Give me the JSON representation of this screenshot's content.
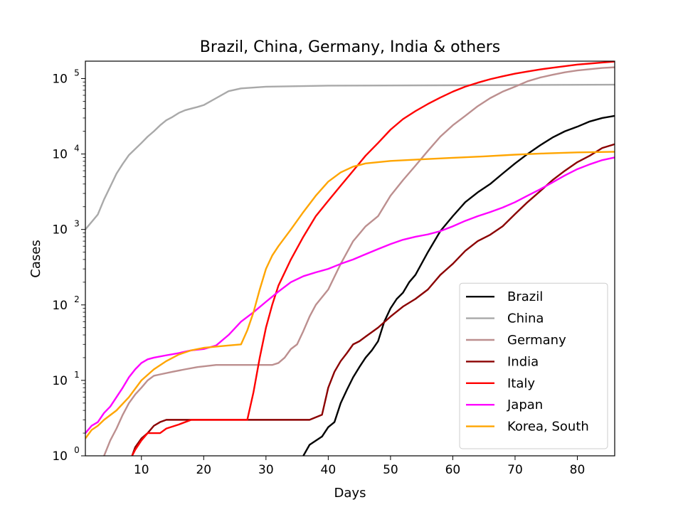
{
  "chart_data": {
    "type": "line",
    "title": "Brazil, China, Germany, India & others",
    "xlabel": "Days",
    "ylabel": "Cases",
    "xlim": [
      1,
      86
    ],
    "ylim": [
      1,
      170000
    ],
    "yscale": "log",
    "x_ticks": [
      10,
      20,
      30,
      40,
      50,
      60,
      70,
      80
    ],
    "y_ticks": [
      {
        "value": 1,
        "base": "10",
        "exp": "0"
      },
      {
        "value": 10,
        "base": "10",
        "exp": "1"
      },
      {
        "value": 100,
        "base": "10",
        "exp": "2"
      },
      {
        "value": 1000,
        "base": "10",
        "exp": "3"
      },
      {
        "value": 10000,
        "base": "10",
        "exp": "4"
      },
      {
        "value": 100000,
        "base": "10",
        "exp": "5"
      }
    ],
    "grid": false,
    "legend_position": "lower-right",
    "series": [
      {
        "name": "Brazil",
        "color": "#000000",
        "points": [
          [
            36,
            1
          ],
          [
            37,
            1.4
          ],
          [
            39,
            1.8
          ],
          [
            40,
            2.4
          ],
          [
            41,
            2.8
          ],
          [
            42,
            5
          ],
          [
            43,
            7.5
          ],
          [
            44,
            11
          ],
          [
            45,
            15
          ],
          [
            46,
            20
          ],
          [
            47,
            25
          ],
          [
            48,
            33
          ],
          [
            49,
            60
          ],
          [
            50,
            90
          ],
          [
            51,
            120
          ],
          [
            52,
            145
          ],
          [
            53,
            200
          ],
          [
            54,
            250
          ],
          [
            56,
            500
          ],
          [
            58,
            950
          ],
          [
            60,
            1500
          ],
          [
            62,
            2300
          ],
          [
            64,
            3100
          ],
          [
            66,
            4000
          ],
          [
            68,
            5500
          ],
          [
            70,
            7500
          ],
          [
            72,
            10000
          ],
          [
            74,
            13000
          ],
          [
            76,
            16500
          ],
          [
            78,
            20000
          ],
          [
            80,
            23000
          ],
          [
            82,
            27000
          ],
          [
            84,
            30000
          ],
          [
            86,
            32000
          ]
        ]
      },
      {
        "name": "China",
        "color": "#a9a9a9",
        "points": [
          [
            1,
            1000
          ],
          [
            3,
            1580
          ],
          [
            4,
            2500
          ],
          [
            5,
            3700
          ],
          [
            6,
            5500
          ],
          [
            7,
            7400
          ],
          [
            8,
            9700
          ],
          [
            10,
            14000
          ],
          [
            11,
            17000
          ],
          [
            12,
            20000
          ],
          [
            13,
            24000
          ],
          [
            14,
            28000
          ],
          [
            15,
            31000
          ],
          [
            16,
            35000
          ],
          [
            17,
            38000
          ],
          [
            18,
            40000
          ],
          [
            19,
            42000
          ],
          [
            20,
            44500
          ],
          [
            22,
            55000
          ],
          [
            24,
            68000
          ],
          [
            26,
            74000
          ],
          [
            30,
            78000
          ],
          [
            40,
            80500
          ],
          [
            60,
            81500
          ],
          [
            86,
            83000
          ]
        ]
      },
      {
        "name": "Germany",
        "color": "#bc8f8f",
        "points": [
          [
            4,
            1
          ],
          [
            5,
            1.6
          ],
          [
            6,
            2.3
          ],
          [
            7,
            3.5
          ],
          [
            8,
            5
          ],
          [
            9,
            6.5
          ],
          [
            10,
            8
          ],
          [
            11,
            10
          ],
          [
            12,
            11.5
          ],
          [
            13,
            12
          ],
          [
            15,
            13
          ],
          [
            17,
            14
          ],
          [
            19,
            15
          ],
          [
            22,
            16
          ],
          [
            26,
            16
          ],
          [
            31,
            16
          ],
          [
            32,
            17
          ],
          [
            33,
            20
          ],
          [
            34,
            26
          ],
          [
            35,
            30
          ],
          [
            36,
            45
          ],
          [
            37,
            70
          ],
          [
            38,
            100
          ],
          [
            40,
            160
          ],
          [
            42,
            350
          ],
          [
            44,
            700
          ],
          [
            46,
            1100
          ],
          [
            48,
            1500
          ],
          [
            50,
            2800
          ],
          [
            52,
            4500
          ],
          [
            54,
            7000
          ],
          [
            56,
            11000
          ],
          [
            58,
            17000
          ],
          [
            60,
            24000
          ],
          [
            62,
            32000
          ],
          [
            64,
            43000
          ],
          [
            66,
            55000
          ],
          [
            68,
            67000
          ],
          [
            70,
            78000
          ],
          [
            72,
            92000
          ],
          [
            74,
            103000
          ],
          [
            76,
            112000
          ],
          [
            78,
            121000
          ],
          [
            80,
            128000
          ],
          [
            82,
            133000
          ],
          [
            84,
            138000
          ],
          [
            86,
            141000
          ]
        ]
      },
      {
        "name": "India",
        "color": "#8b0000",
        "points": [
          [
            8.5,
            1
          ],
          [
            9,
            1.3
          ],
          [
            10,
            1.7
          ],
          [
            11,
            2
          ],
          [
            12,
            2.5
          ],
          [
            13,
            2.8
          ],
          [
            14,
            3
          ],
          [
            20,
            3
          ],
          [
            30,
            3
          ],
          [
            37,
            3
          ],
          [
            39,
            3.5
          ],
          [
            40,
            8
          ],
          [
            41,
            13
          ],
          [
            42,
            18
          ],
          [
            43,
            23
          ],
          [
            44,
            30
          ],
          [
            45,
            33
          ],
          [
            46,
            38
          ],
          [
            48,
            50
          ],
          [
            50,
            70
          ],
          [
            52,
            95
          ],
          [
            54,
            120
          ],
          [
            56,
            160
          ],
          [
            58,
            250
          ],
          [
            60,
            350
          ],
          [
            62,
            520
          ],
          [
            64,
            700
          ],
          [
            66,
            850
          ],
          [
            68,
            1100
          ],
          [
            70,
            1600
          ],
          [
            72,
            2300
          ],
          [
            74,
            3200
          ],
          [
            76,
            4500
          ],
          [
            78,
            6000
          ],
          [
            80,
            7800
          ],
          [
            82,
            9500
          ],
          [
            84,
            12000
          ],
          [
            86,
            13500
          ]
        ]
      },
      {
        "name": "Italy",
        "color": "#ff0000",
        "points": [
          [
            8.5,
            1
          ],
          [
            9,
            1.2
          ],
          [
            10,
            1.6
          ],
          [
            11,
            2
          ],
          [
            13,
            2
          ],
          [
            14,
            2.3
          ],
          [
            16,
            2.6
          ],
          [
            18,
            3
          ],
          [
            20,
            3
          ],
          [
            27,
            3
          ],
          [
            28,
            7
          ],
          [
            29,
            20
          ],
          [
            30,
            50
          ],
          [
            31,
            100
          ],
          [
            32,
            180
          ],
          [
            34,
            400
          ],
          [
            36,
            800
          ],
          [
            38,
            1500
          ],
          [
            40,
            2400
          ],
          [
            42,
            3800
          ],
          [
            44,
            6000
          ],
          [
            46,
            9500
          ],
          [
            48,
            14000
          ],
          [
            50,
            21000
          ],
          [
            52,
            29000
          ],
          [
            54,
            37000
          ],
          [
            56,
            46000
          ],
          [
            58,
            56000
          ],
          [
            60,
            67000
          ],
          [
            62,
            78000
          ],
          [
            64,
            88000
          ],
          [
            66,
            98000
          ],
          [
            68,
            107000
          ],
          [
            70,
            116000
          ],
          [
            72,
            124000
          ],
          [
            74,
            132000
          ],
          [
            76,
            139000
          ],
          [
            78,
            146000
          ],
          [
            80,
            153000
          ],
          [
            82,
            158000
          ],
          [
            84,
            163000
          ],
          [
            86,
            168000
          ]
        ]
      },
      {
        "name": "Japan",
        "color": "#ff00ff",
        "points": [
          [
            1,
            2
          ],
          [
            2,
            2.5
          ],
          [
            3,
            2.8
          ],
          [
            4,
            3.7
          ],
          [
            5,
            4.5
          ],
          [
            6,
            6
          ],
          [
            7,
            8
          ],
          [
            8,
            11
          ],
          [
            9,
            14
          ],
          [
            10,
            17
          ],
          [
            11,
            19
          ],
          [
            12,
            20
          ],
          [
            14,
            21.5
          ],
          [
            16,
            23
          ],
          [
            18,
            25
          ],
          [
            20,
            26
          ],
          [
            22,
            29
          ],
          [
            24,
            40
          ],
          [
            26,
            60
          ],
          [
            28,
            80
          ],
          [
            30,
            110
          ],
          [
            32,
            150
          ],
          [
            34,
            200
          ],
          [
            36,
            240
          ],
          [
            38,
            270
          ],
          [
            40,
            300
          ],
          [
            42,
            350
          ],
          [
            44,
            400
          ],
          [
            46,
            470
          ],
          [
            48,
            550
          ],
          [
            50,
            640
          ],
          [
            52,
            730
          ],
          [
            54,
            800
          ],
          [
            56,
            860
          ],
          [
            58,
            950
          ],
          [
            60,
            1100
          ],
          [
            62,
            1300
          ],
          [
            64,
            1500
          ],
          [
            66,
            1700
          ],
          [
            68,
            1950
          ],
          [
            70,
            2300
          ],
          [
            72,
            2800
          ],
          [
            74,
            3400
          ],
          [
            76,
            4200
          ],
          [
            78,
            5200
          ],
          [
            80,
            6300
          ],
          [
            82,
            7300
          ],
          [
            84,
            8300
          ],
          [
            86,
            9000
          ]
        ]
      },
      {
        "name": "Korea, South",
        "color": "#ffa500",
        "points": [
          [
            1,
            1.7
          ],
          [
            2,
            2.2
          ],
          [
            3,
            2.5
          ],
          [
            4,
            3
          ],
          [
            6,
            4
          ],
          [
            8,
            6
          ],
          [
            10,
            10
          ],
          [
            12,
            14
          ],
          [
            14,
            18
          ],
          [
            16,
            22
          ],
          [
            18,
            25
          ],
          [
            20,
            27
          ],
          [
            22,
            28
          ],
          [
            24,
            29
          ],
          [
            26,
            30
          ],
          [
            27,
            46
          ],
          [
            28,
            80
          ],
          [
            29,
            160
          ],
          [
            30,
            300
          ],
          [
            31,
            450
          ],
          [
            32,
            600
          ],
          [
            34,
            1000
          ],
          [
            36,
            1700
          ],
          [
            38,
            2800
          ],
          [
            40,
            4300
          ],
          [
            42,
            5700
          ],
          [
            44,
            6800
          ],
          [
            46,
            7500
          ],
          [
            48,
            7800
          ],
          [
            50,
            8100
          ],
          [
            55,
            8500
          ],
          [
            60,
            8900
          ],
          [
            65,
            9300
          ],
          [
            70,
            9800
          ],
          [
            75,
            10200
          ],
          [
            80,
            10500
          ],
          [
            86,
            10700
          ]
        ]
      }
    ]
  }
}
